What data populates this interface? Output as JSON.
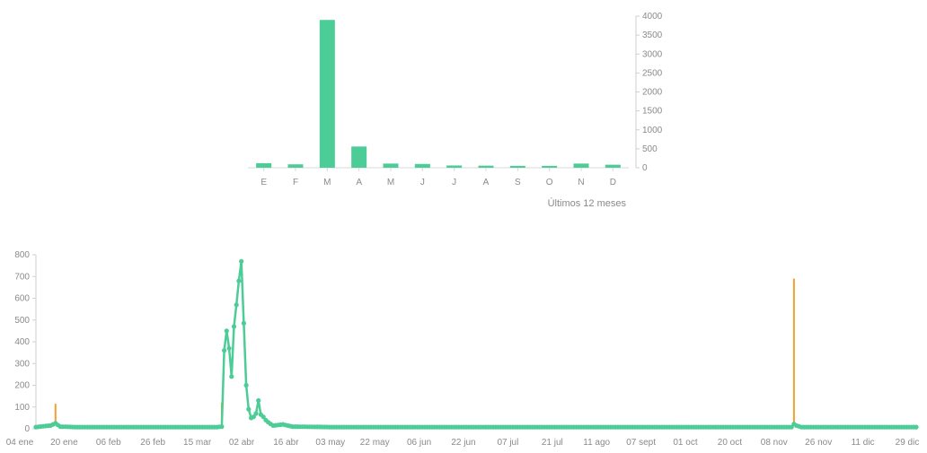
{
  "chart_data": [
    {
      "type": "bar",
      "title": "",
      "xlabel": "Últimos 12 meses",
      "ylabel": "",
      "categories": [
        "E",
        "F",
        "M",
        "A",
        "M",
        "J",
        "J",
        "A",
        "S",
        "O",
        "N",
        "D"
      ],
      "values": [
        120,
        90,
        3900,
        560,
        110,
        100,
        60,
        55,
        50,
        50,
        110,
        80
      ],
      "ylim": [
        0,
        4000
      ],
      "yticks": [
        0,
        500,
        1000,
        1500,
        2000,
        2500,
        3000,
        3500,
        4000
      ],
      "color": "#4ccc96",
      "axis_position": "right",
      "grid": false
    },
    {
      "type": "line",
      "title": "",
      "xlabel": "",
      "ylabel": "",
      "ylim": [
        0,
        800
      ],
      "yticks": [
        0,
        100,
        200,
        300,
        400,
        500,
        600,
        700,
        800
      ],
      "xlim": [
        "2020-01-04",
        "2020-12-29"
      ],
      "xticks": [
        "04 ene",
        "20 ene",
        "06 feb",
        "26 feb",
        "15 mar",
        "02 abr",
        "16 abr",
        "03 may",
        "22 may",
        "06 jun",
        "22 jun",
        "07 jul",
        "21 jul",
        "11 ago",
        "07 sept",
        "01 oct",
        "20 oct",
        "08 nov",
        "26 nov",
        "11 dic",
        "29 dic"
      ],
      "baseline": 8,
      "grid": false,
      "series": [
        {
          "color": "#4ccc96",
          "points": [
            [
              "2020-01-04",
              8
            ],
            [
              "2020-01-10",
              15
            ],
            [
              "2020-01-12",
              25
            ],
            [
              "2020-01-14",
              10
            ],
            [
              "2020-01-20",
              8
            ],
            [
              "2020-03-18",
              8
            ],
            [
              "2020-03-20",
              10
            ],
            [
              "2020-03-21",
              360
            ],
            [
              "2020-03-22",
              450
            ],
            [
              "2020-03-23",
              370
            ],
            [
              "2020-03-24",
              240
            ],
            [
              "2020-03-25",
              470
            ],
            [
              "2020-03-26",
              570
            ],
            [
              "2020-03-27",
              680
            ],
            [
              "2020-03-28",
              770
            ],
            [
              "2020-03-30",
              200
            ],
            [
              "2020-03-31",
              90
            ],
            [
              "2020-04-01",
              50
            ],
            [
              "2020-04-02",
              55
            ],
            [
              "2020-04-03",
              70
            ],
            [
              "2020-04-04",
              130
            ],
            [
              "2020-04-05",
              65
            ],
            [
              "2020-04-06",
              55
            ],
            [
              "2020-04-07",
              40
            ],
            [
              "2020-04-08",
              30
            ],
            [
              "2020-04-09",
              22
            ],
            [
              "2020-04-10",
              15
            ],
            [
              "2020-04-14",
              20
            ],
            [
              "2020-04-18",
              10
            ],
            [
              "2020-05-03",
              8
            ],
            [
              "2020-11-08",
              8
            ],
            [
              "2020-11-09",
              22
            ],
            [
              "2020-11-10",
              15
            ],
            [
              "2020-11-12",
              8
            ],
            [
              "2020-12-29",
              8
            ]
          ]
        }
      ],
      "markers": [
        {
          "date": "2020-01-12",
          "value": 115,
          "color": "#f0a030"
        },
        {
          "date": "2020-03-20",
          "value": 120,
          "color": "#f0a030"
        },
        {
          "date": "2020-11-09",
          "value": 690,
          "color": "#f0a030"
        }
      ]
    }
  ]
}
